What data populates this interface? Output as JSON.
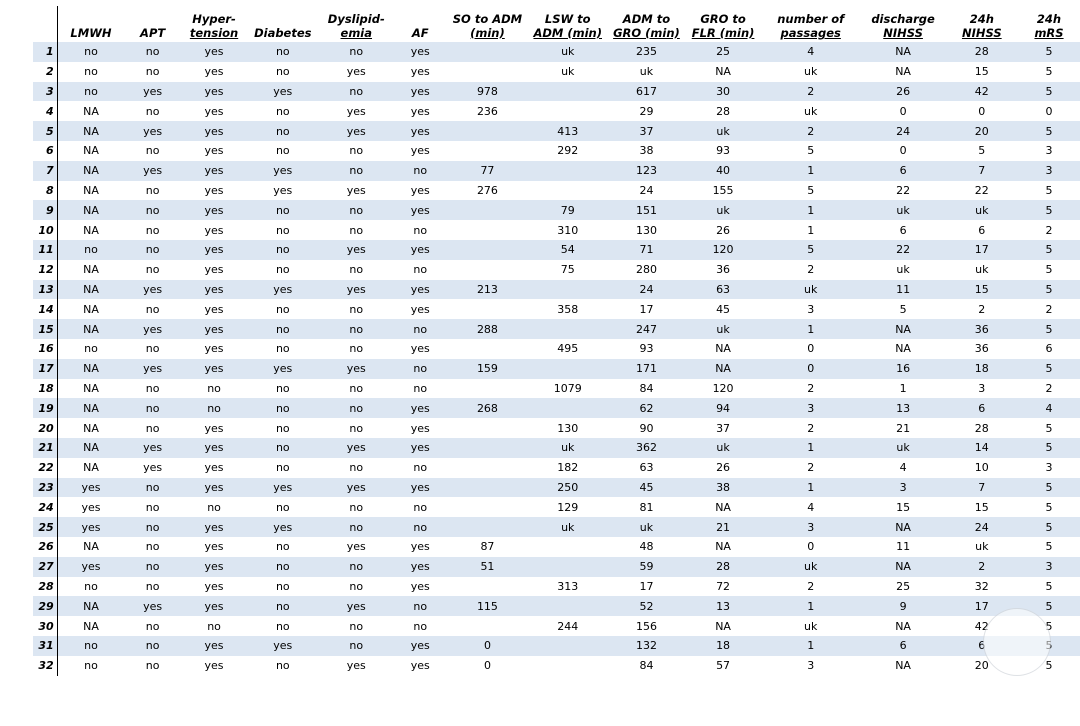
{
  "headers": [
    "",
    "LMWH",
    "APT",
    "Hyper-\ntension",
    "Diabetes",
    "Dyslipid-\nemia",
    "AF",
    "SO to ADM\n(min)",
    "LSW to\nADM (min)",
    "ADM to\nGRO (min)",
    "GRO to\nFLR (min)",
    "number of\npassages",
    "discharge\nNIHSS",
    "24h\nNIHSS",
    "24h\nmRS"
  ],
  "rows": [
    [
      "1",
      "no",
      "no",
      "yes",
      "no",
      "no",
      "yes",
      "",
      "uk",
      "235",
      "25",
      "4",
      "NA",
      "28",
      "5"
    ],
    [
      "2",
      "no",
      "no",
      "yes",
      "no",
      "yes",
      "yes",
      "",
      "uk",
      "uk",
      "NA",
      "uk",
      "NA",
      "15",
      "5"
    ],
    [
      "3",
      "no",
      "yes",
      "yes",
      "yes",
      "no",
      "yes",
      "978",
      "",
      "617",
      "30",
      "2",
      "26",
      "42",
      "5"
    ],
    [
      "4",
      "NA",
      "no",
      "yes",
      "no",
      "yes",
      "yes",
      "236",
      "",
      "29",
      "28",
      "uk",
      "0",
      "0",
      "0"
    ],
    [
      "5",
      "NA",
      "yes",
      "yes",
      "no",
      "yes",
      "yes",
      "",
      "413",
      "37",
      "uk",
      "2",
      "24",
      "20",
      "5"
    ],
    [
      "6",
      "NA",
      "no",
      "yes",
      "no",
      "no",
      "yes",
      "",
      "292",
      "38",
      "93",
      "5",
      "0",
      "5",
      "3"
    ],
    [
      "7",
      "NA",
      "yes",
      "yes",
      "yes",
      "no",
      "no",
      "77",
      "",
      "123",
      "40",
      "1",
      "6",
      "7",
      "3"
    ],
    [
      "8",
      "NA",
      "no",
      "yes",
      "yes",
      "yes",
      "yes",
      "276",
      "",
      "24",
      "155",
      "5",
      "22",
      "22",
      "5"
    ],
    [
      "9",
      "NA",
      "no",
      "yes",
      "no",
      "no",
      "yes",
      "",
      "79",
      "151",
      "uk",
      "1",
      "uk",
      "uk",
      "5"
    ],
    [
      "10",
      "NA",
      "no",
      "yes",
      "no",
      "no",
      "no",
      "",
      "310",
      "130",
      "26",
      "1",
      "6",
      "6",
      "2"
    ],
    [
      "11",
      "no",
      "no",
      "yes",
      "no",
      "yes",
      "yes",
      "",
      "54",
      "71",
      "120",
      "5",
      "22",
      "17",
      "5"
    ],
    [
      "12",
      "NA",
      "no",
      "yes",
      "no",
      "no",
      "no",
      "",
      "75",
      "280",
      "36",
      "2",
      "uk",
      "uk",
      "5"
    ],
    [
      "13",
      "NA",
      "yes",
      "yes",
      "yes",
      "yes",
      "yes",
      "213",
      "",
      "24",
      "63",
      "uk",
      "11",
      "15",
      "5"
    ],
    [
      "14",
      "NA",
      "no",
      "yes",
      "no",
      "no",
      "yes",
      "",
      "358",
      "17",
      "45",
      "3",
      "5",
      "2",
      "2"
    ],
    [
      "15",
      "NA",
      "yes",
      "yes",
      "no",
      "no",
      "no",
      "288",
      "",
      "247",
      "uk",
      "1",
      "NA",
      "36",
      "5"
    ],
    [
      "16",
      "no",
      "no",
      "yes",
      "no",
      "no",
      "yes",
      "",
      "495",
      "93",
      "NA",
      "0",
      "NA",
      "36",
      "6"
    ],
    [
      "17",
      "NA",
      "yes",
      "yes",
      "yes",
      "yes",
      "no",
      "159",
      "",
      "171",
      "NA",
      "0",
      "16",
      "18",
      "5"
    ],
    [
      "18",
      "NA",
      "no",
      "no",
      "no",
      "no",
      "no",
      "",
      "1079",
      "84",
      "120",
      "2",
      "1",
      "3",
      "2"
    ],
    [
      "19",
      "NA",
      "no",
      "no",
      "no",
      "no",
      "yes",
      "268",
      "",
      "62",
      "94",
      "3",
      "13",
      "6",
      "4"
    ],
    [
      "20",
      "NA",
      "no",
      "yes",
      "no",
      "no",
      "yes",
      "",
      "130",
      "90",
      "37",
      "2",
      "21",
      "28",
      "5"
    ],
    [
      "21",
      "NA",
      "yes",
      "yes",
      "no",
      "yes",
      "yes",
      "",
      "uk",
      "362",
      "uk",
      "1",
      "uk",
      "14",
      "5"
    ],
    [
      "22",
      "NA",
      "yes",
      "yes",
      "no",
      "no",
      "no",
      "",
      "182",
      "63",
      "26",
      "2",
      "4",
      "10",
      "3"
    ],
    [
      "23",
      "yes",
      "no",
      "yes",
      "yes",
      "yes",
      "yes",
      "",
      "250",
      "45",
      "38",
      "1",
      "3",
      "7",
      "5"
    ],
    [
      "24",
      "yes",
      "no",
      "no",
      "no",
      "no",
      "no",
      "",
      "129",
      "81",
      "NA",
      "4",
      "15",
      "15",
      "5"
    ],
    [
      "25",
      "yes",
      "no",
      "yes",
      "yes",
      "no",
      "no",
      "",
      "uk",
      "uk",
      "21",
      "3",
      "NA",
      "24",
      "5"
    ],
    [
      "26",
      "NA",
      "no",
      "yes",
      "no",
      "yes",
      "yes",
      "87",
      "",
      "48",
      "NA",
      "0",
      "11",
      "uk",
      "5"
    ],
    [
      "27",
      "yes",
      "no",
      "yes",
      "no",
      "no",
      "yes",
      "51",
      "",
      "59",
      "28",
      "uk",
      "NA",
      "2",
      "3"
    ],
    [
      "28",
      "no",
      "no",
      "yes",
      "no",
      "no",
      "yes",
      "",
      "313",
      "17",
      "72",
      "2",
      "25",
      "32",
      "5"
    ],
    [
      "29",
      "NA",
      "yes",
      "yes",
      "no",
      "yes",
      "no",
      "115",
      "",
      "52",
      "13",
      "1",
      "9",
      "17",
      "5"
    ],
    [
      "30",
      "NA",
      "no",
      "no",
      "no",
      "no",
      "no",
      "",
      "244",
      "156",
      "NA",
      "uk",
      "NA",
      "42",
      "5"
    ],
    [
      "31",
      "no",
      "no",
      "yes",
      "yes",
      "no",
      "yes",
      "0",
      "",
      "132",
      "18",
      "1",
      "6",
      "6",
      "5"
    ],
    [
      "32",
      "no",
      "no",
      "yes",
      "no",
      "yes",
      "yes",
      "0",
      "",
      "84",
      "57",
      "3",
      "NA",
      "20",
      "5"
    ]
  ],
  "colors": {
    "stripe": "#dce6f2",
    "text": "#000000",
    "background": "#ffffff"
  }
}
